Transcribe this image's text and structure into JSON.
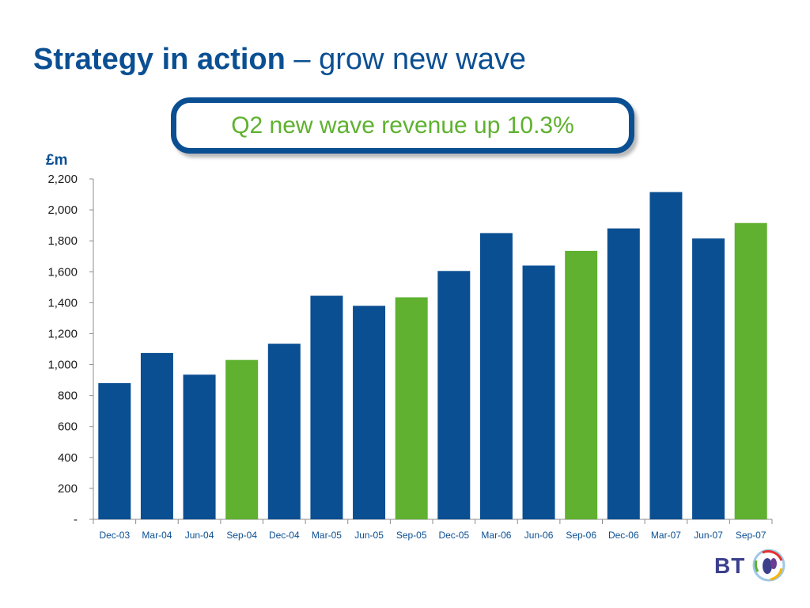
{
  "title": {
    "bold": "Strategy in action",
    "rest": " – grow new wave"
  },
  "callout": "Q2 new wave revenue up 10.3%",
  "logo_text": "BT",
  "colors": {
    "blue": "#0b4f93",
    "green": "#5fb12f"
  },
  "chart_data": {
    "type": "bar",
    "ylabel": "£m",
    "ylim": [
      0,
      2200
    ],
    "y_ticks": [
      0,
      200,
      400,
      600,
      800,
      1000,
      1200,
      1400,
      1600,
      1800,
      2000,
      2200
    ],
    "y_tick_labels": [
      "-",
      "200",
      "400",
      "600",
      "800",
      "1,000",
      "1,200",
      "1,400",
      "1,600",
      "1,800",
      "2,000",
      "2,200"
    ],
    "categories": [
      "Dec-03",
      "Mar-04",
      "Jun-04",
      "Sep-04",
      "Dec-04",
      "Mar-05",
      "Jun-05",
      "Sep-05",
      "Dec-05",
      "Mar-06",
      "Jun-06",
      "Sep-06",
      "Dec-06",
      "Mar-07",
      "Jun-07",
      "Sep-07"
    ],
    "values": [
      880,
      1075,
      935,
      1030,
      1135,
      1445,
      1380,
      1435,
      1605,
      1850,
      1640,
      1735,
      1880,
      2115,
      1815,
      1915
    ],
    "bar_colors": [
      "blue",
      "blue",
      "blue",
      "green",
      "blue",
      "blue",
      "blue",
      "green",
      "blue",
      "blue",
      "blue",
      "green",
      "blue",
      "blue",
      "blue",
      "green"
    ],
    "grid": false,
    "legend": "none"
  }
}
